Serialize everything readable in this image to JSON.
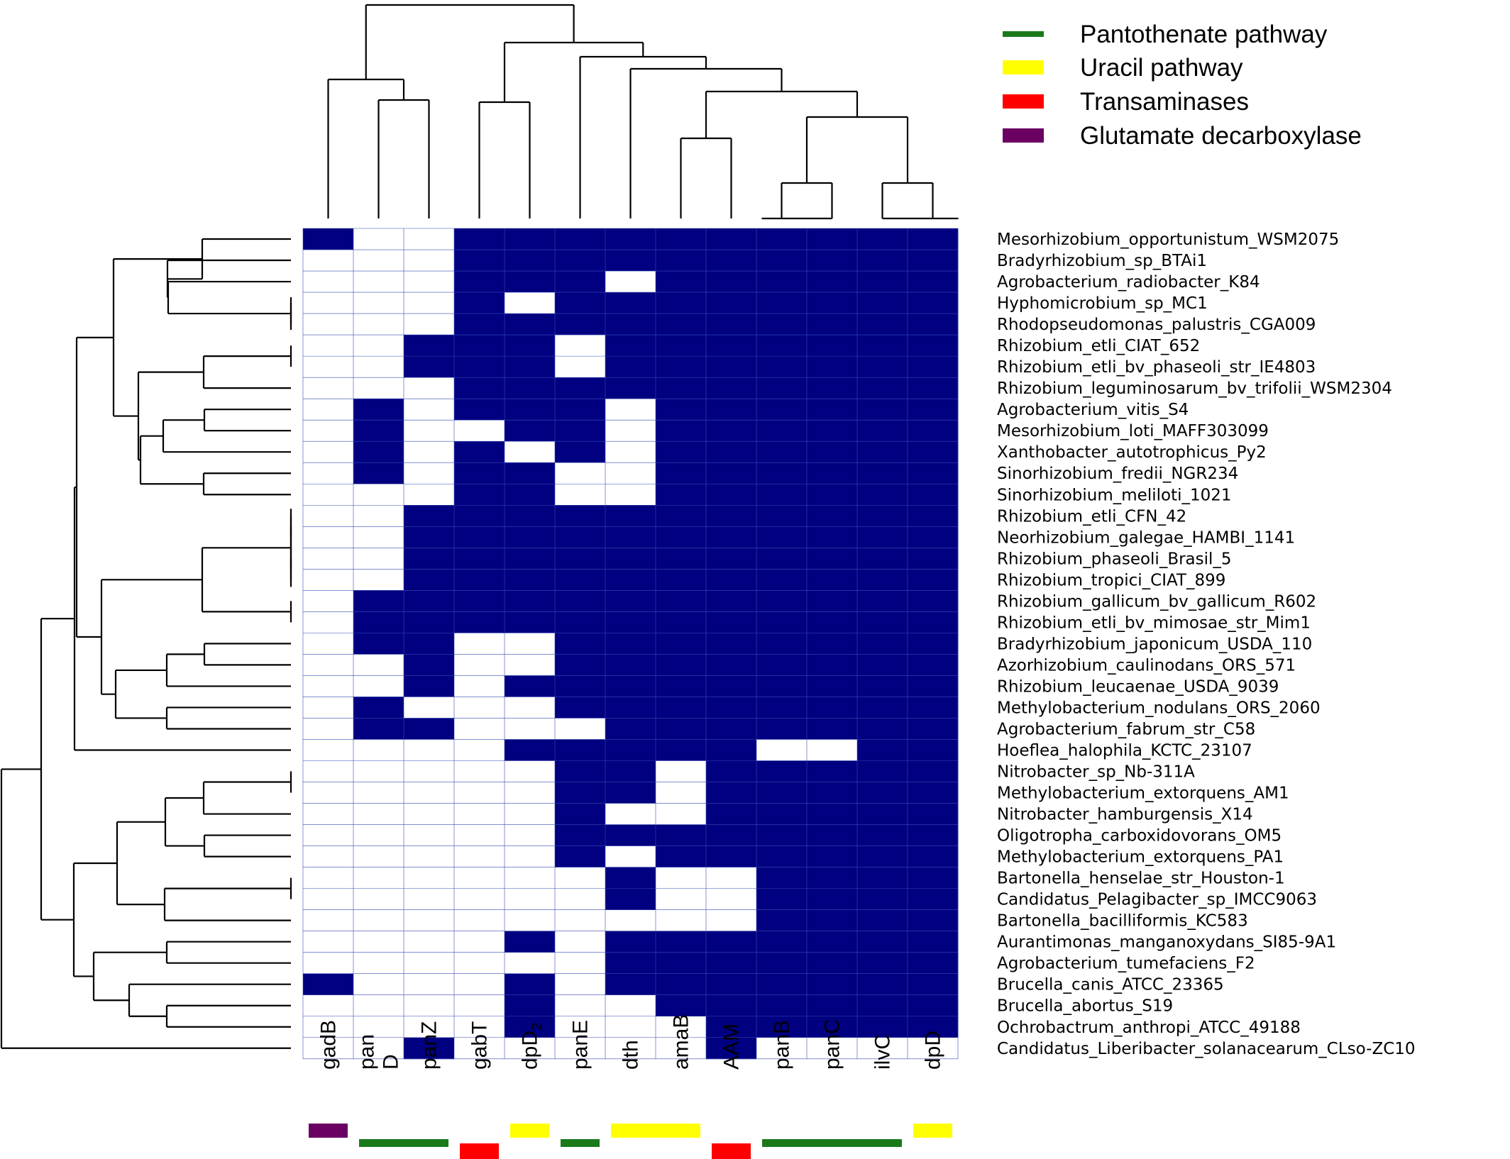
{
  "chart_data": {
    "type": "heatmap",
    "title": "",
    "xlabel": "",
    "ylabel": "",
    "colors": {
      "present": "#000080",
      "absent": "#ffffff",
      "pathways": {
        "Pantothenate pathway": "#1a7a1a",
        "Uracil pathway": "#ffff00",
        "Transaminases": "#ff0000",
        "Glutamate decarboxylase": "#6b0063"
      }
    },
    "legend": {
      "position": "top-right",
      "items": [
        {
          "label": "Pantothenate pathway",
          "color": "#1a7a1a"
        },
        {
          "label": "Uracil pathway",
          "color": "#ffff00"
        },
        {
          "label": "Transaminases",
          "color": "#ff0000"
        },
        {
          "label": "Glutamate decarboxylase",
          "color": "#6b0063"
        }
      ]
    },
    "columns": [
      {
        "label": "gadB",
        "pathway": "Glutamate decarboxylase"
      },
      {
        "label": "pan D",
        "pathway": "Pantothenate pathway"
      },
      {
        "label": "panZ",
        "pathway": "Pantothenate pathway"
      },
      {
        "label": "gabT",
        "pathway": "Transaminases"
      },
      {
        "label": "dpD",
        "subscript": "2",
        "pathway": "Uracil pathway"
      },
      {
        "label": "panE",
        "pathway": "Pantothenate pathway"
      },
      {
        "label": "dth",
        "pathway": "Uracil pathway"
      },
      {
        "label": "amaB",
        "pathway": "Uracil pathway"
      },
      {
        "label": "AAM",
        "pathway": "Transaminases"
      },
      {
        "label": "panB",
        "pathway": "Pantothenate pathway"
      },
      {
        "label": "panC",
        "pathway": "Pantothenate pathway"
      },
      {
        "label": "ilvC",
        "pathway": "Pantothenate pathway"
      },
      {
        "label": "dpD",
        "pathway": "Uracil pathway"
      }
    ],
    "rows": [
      "Mesorhizobium_opportunistum_WSM2075",
      "Bradyrhizobium_sp_BTAi1",
      "Agrobacterium_radiobacter_K84",
      "Hyphomicrobium_sp_MC1",
      "Rhodopseudomonas_palustris_CGA009",
      "Rhizobium_etli_CIAT_652",
      "Rhizobium_etli_bv_phaseoli_str_IE4803",
      "Rhizobium_leguminosarum_bv_trifolii_WSM2304",
      "Agrobacterium_vitis_S4",
      "Mesorhizobium_loti_MAFF303099",
      "Xanthobacter_autotrophicus_Py2",
      "Sinorhizobium_fredii_NGR234",
      "Sinorhizobium_meliloti_1021",
      "Rhizobium_etli_CFN_42",
      "Neorhizobium_galegae_HAMBI_1141",
      "Rhizobium_phaseoli_Brasil_5",
      "Rhizobium_tropici_CIAT_899",
      "Rhizobium_gallicum_bv_gallicum_R602",
      "Rhizobium_etli_bv_mimosae_str_Mim1",
      "Bradyrhizobium_japonicum_USDA_110",
      "Azorhizobium_caulinodans_ORS_571",
      "Rhizobium_leucaenae_USDA_9039",
      "Methylobacterium_nodulans_ORS_2060",
      "Agrobacterium_fabrum_str_C58",
      "Hoeflea_halophila_KCTC_23107",
      "Nitrobacter_sp_Nb-311A",
      "Methylobacterium_extorquens_AM1",
      "Nitrobacter_hamburgensis_X14",
      "Oligotropha_carboxidovorans_OM5",
      "Methylobacterium_extorquens_PA1",
      "Bartonella_henselae_str_Houston-1",
      "Candidatus_Pelagibacter_sp_IMCC9063",
      "Bartonella_bacilliformis_KC583",
      "Aurantimonas_manganoxydans_SI85-9A1",
      "Agrobacterium_tumefaciens_F2",
      "Brucella_canis_ATCC_23365",
      "Brucella_abortus_S19",
      "Ochrobactrum_anthropi_ATCC_49188",
      "Candidatus_Liberibacter_solanacearum_CLso-ZC10"
    ],
    "matrix": [
      [
        1,
        0,
        0,
        1,
        1,
        1,
        1,
        1,
        1,
        1,
        1,
        1,
        1
      ],
      [
        0,
        0,
        0,
        1,
        1,
        1,
        1,
        1,
        1,
        1,
        1,
        1,
        1
      ],
      [
        0,
        0,
        0,
        1,
        1,
        1,
        0,
        1,
        1,
        1,
        1,
        1,
        1
      ],
      [
        0,
        0,
        0,
        1,
        0,
        1,
        1,
        1,
        1,
        1,
        1,
        1,
        1
      ],
      [
        0,
        0,
        0,
        1,
        1,
        1,
        1,
        1,
        1,
        1,
        1,
        1,
        1
      ],
      [
        0,
        0,
        1,
        1,
        1,
        0,
        1,
        1,
        1,
        1,
        1,
        1,
        1
      ],
      [
        0,
        0,
        1,
        1,
        1,
        0,
        1,
        1,
        1,
        1,
        1,
        1,
        1
      ],
      [
        0,
        0,
        0,
        1,
        1,
        1,
        1,
        1,
        1,
        1,
        1,
        1,
        1
      ],
      [
        0,
        1,
        0,
        1,
        1,
        1,
        0,
        1,
        1,
        1,
        1,
        1,
        1
      ],
      [
        0,
        1,
        0,
        0,
        1,
        1,
        0,
        1,
        1,
        1,
        1,
        1,
        1
      ],
      [
        0,
        1,
        0,
        1,
        0,
        1,
        0,
        1,
        1,
        1,
        1,
        1,
        1
      ],
      [
        0,
        1,
        0,
        1,
        1,
        0,
        0,
        1,
        1,
        1,
        1,
        1,
        1
      ],
      [
        0,
        0,
        0,
        1,
        1,
        0,
        0,
        1,
        1,
        1,
        1,
        1,
        1
      ],
      [
        0,
        0,
        1,
        1,
        1,
        1,
        1,
        1,
        1,
        1,
        1,
        1,
        1
      ],
      [
        0,
        0,
        1,
        1,
        1,
        1,
        1,
        1,
        1,
        1,
        1,
        1,
        1
      ],
      [
        0,
        0,
        1,
        1,
        1,
        1,
        1,
        1,
        1,
        1,
        1,
        1,
        1
      ],
      [
        0,
        0,
        1,
        1,
        1,
        1,
        1,
        1,
        1,
        1,
        1,
        1,
        1
      ],
      [
        0,
        1,
        1,
        1,
        1,
        1,
        1,
        1,
        1,
        1,
        1,
        1,
        1
      ],
      [
        0,
        1,
        1,
        1,
        1,
        1,
        1,
        1,
        1,
        1,
        1,
        1,
        1
      ],
      [
        0,
        1,
        1,
        0,
        0,
        1,
        1,
        1,
        1,
        1,
        1,
        1,
        1
      ],
      [
        0,
        0,
        1,
        0,
        0,
        1,
        1,
        1,
        1,
        1,
        1,
        1,
        1
      ],
      [
        0,
        0,
        1,
        0,
        1,
        1,
        1,
        1,
        1,
        1,
        1,
        1,
        1
      ],
      [
        0,
        1,
        0,
        0,
        0,
        1,
        1,
        1,
        1,
        1,
        1,
        1,
        1
      ],
      [
        0,
        1,
        1,
        0,
        0,
        0,
        1,
        1,
        1,
        1,
        1,
        1,
        1
      ],
      [
        0,
        0,
        0,
        0,
        1,
        1,
        1,
        1,
        1,
        0,
        0,
        1,
        1
      ],
      [
        0,
        0,
        0,
        0,
        0,
        1,
        1,
        0,
        1,
        1,
        1,
        1,
        1
      ],
      [
        0,
        0,
        0,
        0,
        0,
        1,
        1,
        0,
        1,
        1,
        1,
        1,
        1
      ],
      [
        0,
        0,
        0,
        0,
        0,
        1,
        0,
        0,
        1,
        1,
        1,
        1,
        1
      ],
      [
        0,
        0,
        0,
        0,
        0,
        1,
        1,
        1,
        1,
        1,
        1,
        1,
        1
      ],
      [
        0,
        0,
        0,
        0,
        0,
        1,
        0,
        1,
        1,
        1,
        1,
        1,
        1
      ],
      [
        0,
        0,
        0,
        0,
        0,
        0,
        1,
        0,
        0,
        1,
        1,
        1,
        1
      ],
      [
        0,
        0,
        0,
        0,
        0,
        0,
        1,
        0,
        0,
        1,
        1,
        1,
        1
      ],
      [
        0,
        0,
        0,
        0,
        0,
        0,
        0,
        0,
        0,
        1,
        1,
        1,
        1
      ],
      [
        0,
        0,
        0,
        0,
        1,
        0,
        1,
        1,
        1,
        1,
        1,
        1,
        1
      ],
      [
        0,
        0,
        0,
        0,
        0,
        0,
        1,
        1,
        1,
        1,
        1,
        1,
        1
      ],
      [
        1,
        0,
        0,
        0,
        1,
        0,
        1,
        1,
        1,
        1,
        1,
        1,
        1
      ],
      [
        0,
        0,
        0,
        0,
        1,
        0,
        0,
        1,
        1,
        1,
        1,
        1,
        1
      ],
      [
        0,
        0,
        0,
        0,
        1,
        0,
        0,
        0,
        1,
        1,
        1,
        1,
        1
      ],
      [
        0,
        0,
        1,
        0,
        0,
        0,
        0,
        0,
        1,
        0,
        0,
        0,
        0
      ]
    ],
    "grid": true
  }
}
